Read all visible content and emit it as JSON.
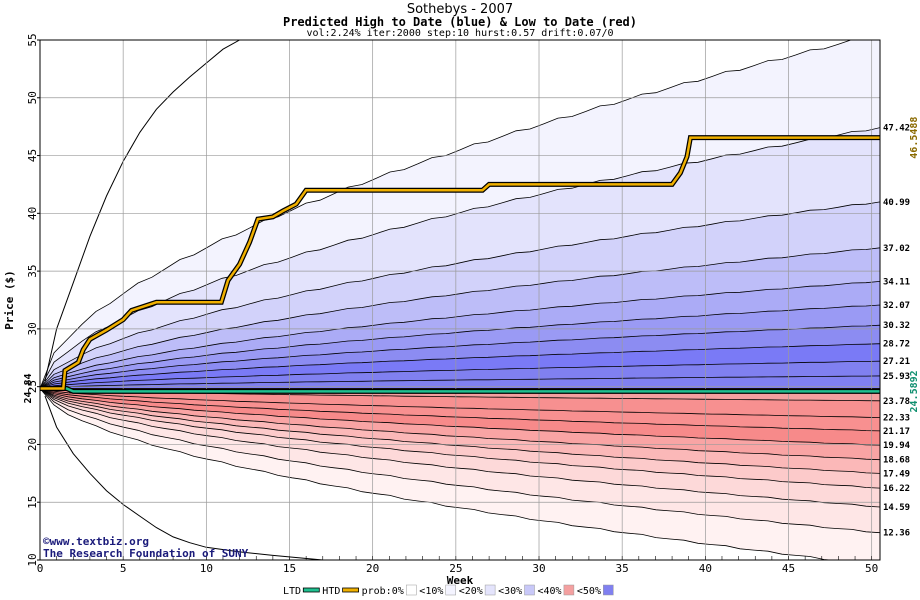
{
  "chart_data": {
    "type": "area",
    "title": "Sothebys - 2007",
    "subtitle": "Predicted High to Date (blue) &  Low to Date (red)",
    "params": "vol:2.24% iter:2000 step:10 hurst:0.57 drift:0.07/0",
    "xlabel": "Week",
    "ylabel": "Price ($)",
    "xlim": [
      0,
      50.5
    ],
    "ylim": [
      10,
      55
    ],
    "x_ticks": [
      0,
      5,
      10,
      15,
      20,
      25,
      30,
      35,
      40,
      45,
      50
    ],
    "y_ticks": [
      10,
      15,
      20,
      25,
      30,
      35,
      40,
      45,
      50,
      55
    ],
    "grid": true,
    "start_price": 24.84,
    "start_label": "24.84",
    "high_bands": [
      {
        "value": 25.93,
        "label": "25.93",
        "color": "#8080f0"
      },
      {
        "value": 27.21,
        "label": "27.21",
        "color": "#8080f0"
      },
      {
        "value": 28.72,
        "label": "28.72",
        "color": "#7a7af6"
      },
      {
        "value": 30.32,
        "label": "30.32",
        "color": "#8c8cf2"
      },
      {
        "value": 32.07,
        "label": "32.07",
        "color": "#9a9af4"
      },
      {
        "value": 34.11,
        "label": "34.11",
        "color": "#ababf6"
      },
      {
        "value": 37.02,
        "label": "37.02",
        "color": "#bdbdf8"
      },
      {
        "value": 40.99,
        "label": "40.99",
        "color": "#d2d2fa"
      },
      {
        "value": 47.42,
        "label": "47.42",
        "color": "#e3e3fc"
      },
      {
        "value": 55.5,
        "label": "",
        "color": "#f3f3fe"
      }
    ],
    "low_bands": [
      {
        "value": 23.78,
        "label": "23.78",
        "color": "#f4a0a0"
      },
      {
        "value": 22.33,
        "label": "22.33",
        "color": "#f79090"
      },
      {
        "value": 21.17,
        "label": "21.17",
        "color": "#f89090"
      },
      {
        "value": 19.94,
        "label": "19.94",
        "color": "#f78a8a"
      },
      {
        "value": 18.68,
        "label": "18.68",
        "color": "#f9a4a4"
      },
      {
        "value": 17.49,
        "label": "17.49",
        "color": "#fbb8b8"
      },
      {
        "value": 16.22,
        "label": "16.22",
        "color": "#fccaca"
      },
      {
        "value": 14.59,
        "label": "14.59",
        "color": "#fdd9d9"
      },
      {
        "value": 12.36,
        "label": "12.36",
        "color": "#fee6e6"
      },
      {
        "value": 9.5,
        "label": "",
        "color": "#fff2f2"
      }
    ],
    "outer_high": [
      [
        0.3,
        25.5
      ],
      [
        1,
        30
      ],
      [
        2,
        34
      ],
      [
        3,
        38
      ],
      [
        4,
        41.5
      ],
      [
        5,
        44.5
      ],
      [
        6,
        47
      ],
      [
        7,
        49
      ],
      [
        8,
        50.5
      ],
      [
        9,
        51.8
      ],
      [
        10,
        53
      ],
      [
        11,
        54.2
      ],
      [
        12,
        55
      ]
    ],
    "outer_low": [
      [
        0.3,
        24.2
      ],
      [
        1,
        21.5
      ],
      [
        2,
        19.2
      ],
      [
        3,
        17.5
      ],
      [
        4,
        16
      ],
      [
        5,
        14.8
      ],
      [
        6,
        13.8
      ],
      [
        7,
        12.8
      ],
      [
        8,
        12
      ],
      [
        9,
        11.5
      ],
      [
        10,
        11.1
      ],
      [
        12,
        10.7
      ],
      [
        14,
        10.4
      ],
      [
        17,
        10
      ]
    ],
    "htd_series": {
      "name": "HTD",
      "end_label": "46.5488",
      "color": "#f0b000",
      "points": [
        [
          0,
          24.84
        ],
        [
          1.4,
          24.84
        ],
        [
          1.5,
          26.4
        ],
        [
          2.3,
          27.1
        ],
        [
          2.6,
          28.2
        ],
        [
          3,
          29.1
        ],
        [
          4,
          29.9
        ],
        [
          5,
          30.8
        ],
        [
          5.5,
          31.6
        ],
        [
          7,
          32.3
        ],
        [
          10.9,
          32.3
        ],
        [
          11.3,
          34.2
        ],
        [
          12,
          35.6
        ],
        [
          12.6,
          37.5
        ],
        [
          13.1,
          39.5
        ],
        [
          14,
          39.7
        ],
        [
          14.6,
          40.2
        ],
        [
          15.4,
          40.8
        ],
        [
          16,
          42
        ],
        [
          26.6,
          42
        ],
        [
          27,
          42.5
        ],
        [
          38,
          42.5
        ],
        [
          38.5,
          43.5
        ],
        [
          38.9,
          44.9
        ],
        [
          39.1,
          46.55
        ],
        [
          50.5,
          46.55
        ]
      ]
    },
    "ltd_series": {
      "name": "LTD",
      "end_label": "24.5892",
      "color": "#20c090",
      "points": [
        [
          0,
          24.84
        ],
        [
          1.6,
          24.84
        ],
        [
          2,
          24.59
        ],
        [
          50.5,
          24.59
        ]
      ]
    },
    "legend": [
      "LTD",
      "HTD",
      "prob:0%",
      "<10%",
      "<20%",
      "<30%",
      "<40%",
      "<50%"
    ],
    "legend_colors": [
      "#20c090",
      "#f0b000",
      "#ffffff",
      "#f4f4ff",
      "#e4e4fc",
      "#c8c8f8",
      "#f4a0a0",
      "#8080f0"
    ],
    "credit_line1": "©www.textbiz.org",
    "credit_line2": "The Research Foundation of SUNY"
  }
}
